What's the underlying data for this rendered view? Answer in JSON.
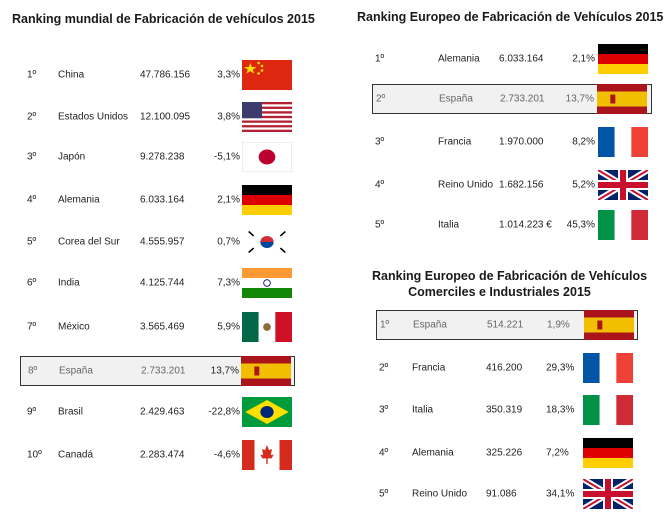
{
  "world": {
    "title": "Ranking mundial  de Fabricación de vehículos  2015",
    "rows": [
      {
        "rank": "1º",
        "country": "China",
        "value": "47.786.156",
        "pct": "3,3%",
        "flag": "china-flag-icon"
      },
      {
        "rank": "2º",
        "country": "Estados Unidos",
        "value": "12.100.095",
        "pct": "3,8%",
        "flag": "usa-flag-icon"
      },
      {
        "rank": "3º",
        "country": "Japón",
        "value": "9.278.238",
        "pct": "-5,1%",
        "flag": "japan-flag-icon"
      },
      {
        "rank": "4º",
        "country": "Alemania",
        "value": "6.033.164",
        "pct": "2,1%",
        "flag": "germany-flag-icon"
      },
      {
        "rank": "5º",
        "country": "Corea del Sur",
        "value": "4.555.957",
        "pct": "0,7%",
        "flag": "south-korea-flag-icon"
      },
      {
        "rank": "6º",
        "country": "India",
        "value": "4.125.744",
        "pct": "7,3%",
        "flag": "india-flag-icon"
      },
      {
        "rank": "7º",
        "country": "México",
        "value": "3.565.469",
        "pct": "5,9%",
        "flag": "mexico-flag-icon"
      },
      {
        "rank": "8º",
        "country": "España",
        "value": "2.733.201",
        "pct": "13,7%",
        "flag": "spain-flag-icon"
      },
      {
        "rank": "9º",
        "country": "Brasil",
        "value": "2.429.463",
        "pct": "-22,8%",
        "flag": "brazil-flag-icon"
      },
      {
        "rank": "10º",
        "country": "Canadá",
        "value": "2.283.474",
        "pct": "-4,6%",
        "flag": "canada-flag-icon"
      }
    ]
  },
  "europe": {
    "title": "Ranking Europeo de Fabricación de Vehículos  2015",
    "rows": [
      {
        "rank": "1º",
        "country": "Alemania",
        "value": "6.033.164",
        "pct": "2,1%",
        "flag": "germany-flag-icon"
      },
      {
        "rank": "2º",
        "country": "España",
        "value": "2.733.201",
        "pct": "13,7%",
        "flag": "spain-flag-icon"
      },
      {
        "rank": "3º",
        "country": "Francia",
        "value": "1.970.000",
        "pct": "8,2%",
        "flag": "france-flag-icon"
      },
      {
        "rank": "4º",
        "country": "Reino Unido",
        "value": "1.682.156",
        "pct": "5,2%",
        "flag": "uk-flag-icon"
      },
      {
        "rank": "5º",
        "country": "Italia",
        "value": "1.014.223 €",
        "pct": "45,3%",
        "flag": "italy-flag-icon"
      }
    ]
  },
  "commercial": {
    "title_line1": "Ranking Europeo de Fabricación de Vehículos",
    "title_line2": "Comerciles e Industriales 2015",
    "rows": [
      {
        "rank": "1º",
        "country": "España",
        "value": "514.221",
        "pct": "1,9%",
        "flag": "spain-flag-icon"
      },
      {
        "rank": "2º",
        "country": "Francia",
        "value": "416.200",
        "pct": "29,3%",
        "flag": "france-flag-icon"
      },
      {
        "rank": "3º",
        "country": "Italia",
        "value": "350.319",
        "pct": "18,3%",
        "flag": "italy-flag-icon"
      },
      {
        "rank": "4º",
        "country": "Alemania",
        "value": "325.226",
        "pct": "7,2%",
        "flag": "germany-flag-icon"
      },
      {
        "rank": "5º",
        "country": "Reino Unido",
        "value": "91.086",
        "pct": "34,1%",
        "flag": "uk-flag-icon"
      }
    ]
  }
}
